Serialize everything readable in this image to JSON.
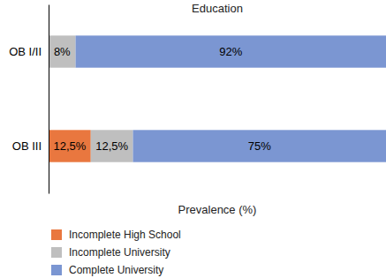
{
  "chart_data": {
    "type": "bar",
    "title": "Education",
    "orientation": "horizontal",
    "stacked": true,
    "data_labels": true,
    "tick_labels": "y",
    "legend": "bottom left",
    "x_label": "Prevalence (%)",
    "categories": [
      "OB I/II",
      "OB III"
    ],
    "xlim": [
      0,
      100
    ],
    "series": [
      {
        "name": "Incomplete High School",
        "color": "#e9773f",
        "values": [
          0,
          12.5
        ],
        "value_labels": [
          null,
          "12,5%"
        ]
      },
      {
        "name": "Incomplete University",
        "color": "#bfbfbf",
        "values": [
          8,
          12.5
        ],
        "value_labels": [
          "8%",
          "12,5%"
        ]
      },
      {
        "name": "Complete University",
        "color": "#7b96d2",
        "values": [
          92,
          75
        ],
        "value_labels": [
          "92%",
          "75%"
        ]
      }
    ]
  }
}
